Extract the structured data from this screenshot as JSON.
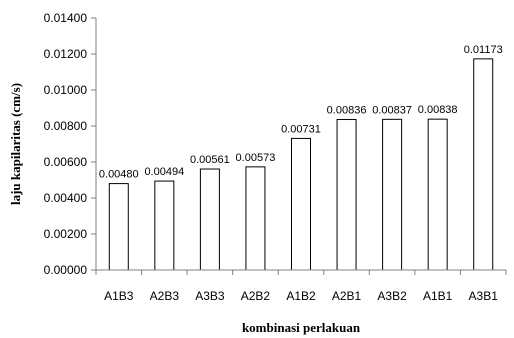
{
  "chart_data": {
    "type": "bar",
    "categories": [
      "A1B3",
      "A2B3",
      "A3B3",
      "A2B2",
      "A1B2",
      "A2B1",
      "A3B2",
      "A1B1",
      "A3B1"
    ],
    "values": [
      0.0048,
      0.00494,
      0.00561,
      0.00573,
      0.00731,
      0.00836,
      0.00837,
      0.00838,
      0.01173
    ],
    "data_labels": [
      "0.00480",
      "0.00494",
      "0.00561",
      "0.00573",
      "0.00731",
      "0.00836",
      "0.00837",
      "0.00838",
      "0.01173"
    ],
    "xlabel": "kombinasi perlakuan",
    "ylabel": "laju kapilaritas (cm/s)",
    "ylim": [
      0,
      0.014
    ],
    "yticks": [
      0,
      0.002,
      0.004,
      0.006,
      0.008,
      0.01,
      0.012,
      0.014
    ],
    "ytick_labels": [
      "0.00000",
      "0.00200",
      "0.00400",
      "0.00600",
      "0.00800",
      "0.01000",
      "0.01200",
      "0.01400"
    ],
    "grid": false,
    "legend": "none",
    "colors": {
      "bar_fill": "#ffffff",
      "bar_stroke": "#000000",
      "axis": "#808080"
    }
  }
}
